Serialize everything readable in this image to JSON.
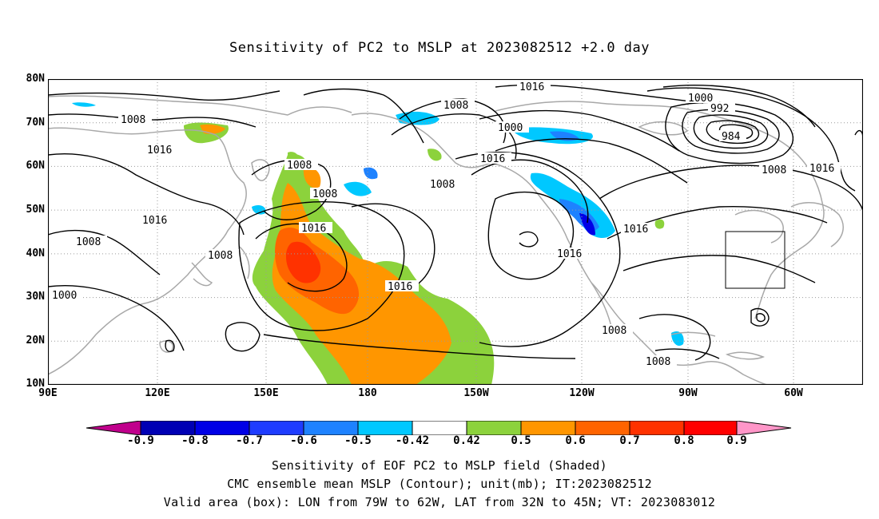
{
  "title": "Sensitivity of PC2 to MSLP at 2023082512 +2.0 day",
  "lat_labels": [
    "80N",
    "70N",
    "60N",
    "50N",
    "40N",
    "30N",
    "20N",
    "10N"
  ],
  "lon_labels": [
    "90E",
    "120E",
    "150E",
    "180",
    "150W",
    "120W",
    "90W",
    "60W"
  ],
  "contour_labels": [
    "1016",
    "1008",
    "1000",
    "992",
    "984",
    "1008",
    "1016",
    "1008",
    "1016",
    "1016",
    "1008",
    "1000",
    "1016",
    "1008",
    "1016",
    "1016",
    "1008",
    "1000",
    "1008",
    "1008",
    "1016",
    "1016",
    "1008",
    "1008"
  ],
  "colorbar": {
    "labels": [
      "-0.9",
      "-0.8",
      "-0.7",
      "-0.6",
      "-0.5",
      "-0.42",
      "0.42",
      "0.5",
      "0.6",
      "0.7",
      "0.8",
      "0.9"
    ],
    "colors": [
      "#c0008c",
      "#0000b4",
      "#0000e6",
      "#1e3cff",
      "#1e82ff",
      "#00c8ff",
      "#ffffff",
      "#8cd23c",
      "#ff9600",
      "#ff6400",
      "#ff3200",
      "#ff0000",
      "#ff96c8"
    ]
  },
  "captions": {
    "line1": "Sensitivity of EOF PC2 to MSLP field (Shaded)",
    "line2": "CMC ensemble mean MSLP (Contour); unit(mb); IT:2023082512",
    "line3": "Valid area (box): LON from 79W to 62W, LAT from 32N to 45N; VT: 2023083012"
  }
}
